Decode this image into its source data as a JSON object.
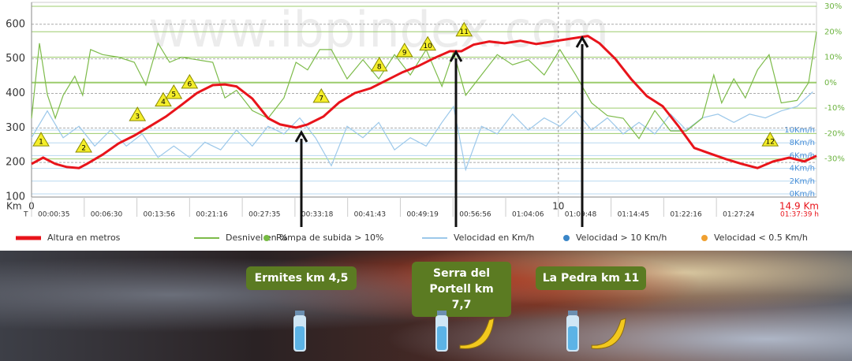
{
  "chart_data": {
    "type": "line",
    "watermark": "www.ibpindex.com",
    "x_label": "Km",
    "time_label": "T",
    "xlim": [
      0,
      14.9
    ],
    "xticks": [
      0,
      10,
      {
        "value": 14.9,
        "label": "14.9 Km"
      }
    ],
    "time_ticks": [
      {
        "value": 0,
        "label": "00:00:35"
      },
      {
        "value": 1,
        "label": "00:06:30"
      },
      {
        "value": 2,
        "label": "00:13:56"
      },
      {
        "value": 3,
        "label": "00:21:16"
      },
      {
        "value": 4,
        "label": "00:27:35"
      },
      {
        "value": 5,
        "label": "00:33:18"
      },
      {
        "value": 6,
        "label": "00:41:43"
      },
      {
        "value": 7,
        "label": "00:49:19"
      },
      {
        "value": 8,
        "label": "00:56:56"
      },
      {
        "value": 9,
        "label": "01:04:06"
      },
      {
        "value": 10,
        "label": "01:09:48"
      },
      {
        "value": 11,
        "label": "01:14:45"
      },
      {
        "value": 12,
        "label": "01:22:16"
      },
      {
        "value": 13,
        "label": "01:27:24"
      },
      {
        "value": 14.9,
        "label": "01:37:39 h"
      }
    ],
    "ylim": [
      100,
      652
    ],
    "yticks": [
      100,
      200,
      300,
      400,
      500,
      600
    ],
    "y2lim": [
      -45,
      30
    ],
    "y2ticks": [
      {
        "value": 30,
        "label": "30%"
      },
      {
        "value": 20,
        "label": "20%"
      },
      {
        "value": 10,
        "label": "10%"
      },
      {
        "value": 0,
        "label": "0%"
      },
      {
        "value": -10,
        "label": "-10%"
      },
      {
        "value": -20,
        "label": "-20%"
      },
      {
        "value": -30,
        "label": "-30%"
      }
    ],
    "y3lim": [
      -0.5,
      29.4
    ],
    "y3ticks": [
      {
        "value": 10,
        "label": "10Km/h"
      },
      {
        "value": 8,
        "label": "8Km/h"
      },
      {
        "value": 6,
        "label": "6Km/h"
      },
      {
        "value": 4,
        "label": "4Km/h"
      },
      {
        "value": 2,
        "label": "2Km/h"
      },
      {
        "value": 0,
        "label": "0Km/h"
      }
    ],
    "grid": true,
    "series": [
      {
        "name": "Altura en metros",
        "color": "#e8141b",
        "axis": "y",
        "x": [
          0,
          0.22,
          0.45,
          0.67,
          0.9,
          1.05,
          1.35,
          1.65,
          1.95,
          2.25,
          2.55,
          2.85,
          3.14,
          3.44,
          3.67,
          3.89,
          4.19,
          4.49,
          4.72,
          5.02,
          5.24,
          5.54,
          5.84,
          6.14,
          6.44,
          6.74,
          7.04,
          7.34,
          7.64,
          7.94,
          8.16,
          8.39,
          8.69,
          8.98,
          9.28,
          9.58,
          9.88,
          10.18,
          10.56,
          10.78,
          11.08,
          11.38,
          11.68,
          11.98,
          12.28,
          12.58,
          12.88,
          13.18,
          13.48,
          13.78,
          14.08,
          14.38,
          14.67,
          14.9
        ],
        "values": [
          196,
          214,
          196,
          187,
          184,
          196,
          223,
          255,
          278,
          305,
          333,
          367,
          401,
          424,
          426,
          420,
          385,
          328,
          310,
          301,
          310,
          333,
          374,
          401,
          415,
          438,
          461,
          479,
          502,
          522,
          522,
          541,
          550,
          545,
          552,
          543,
          550,
          557,
          566,
          545,
          500,
          442,
          392,
          363,
          305,
          242,
          226,
          210,
          196,
          184,
          203,
          214,
          203,
          219
        ]
      },
      {
        "name": "Desnivel en %",
        "color": "#7dbb4a",
        "axis": "y2",
        "x": [
          0,
          0.15,
          0.3,
          0.45,
          0.6,
          0.82,
          0.97,
          1.12,
          1.35,
          1.65,
          1.95,
          2.17,
          2.4,
          2.62,
          2.85,
          3.14,
          3.44,
          3.67,
          3.89,
          4.19,
          4.49,
          4.79,
          5.02,
          5.24,
          5.47,
          5.69,
          5.99,
          6.29,
          6.59,
          6.89,
          7.19,
          7.49,
          7.79,
          8.01,
          8.24,
          8.54,
          8.84,
          9.13,
          9.43,
          9.73,
          10.03,
          10.33,
          10.63,
          10.93,
          11.23,
          11.53,
          11.83,
          12.13,
          12.43,
          12.73,
          12.95,
          13.1,
          13.33,
          13.55,
          13.78,
          14,
          14.23,
          14.53,
          14.75,
          14.9
        ],
        "values": [
          -14,
          15.5,
          -4.7,
          -14,
          -5,
          2.5,
          -5,
          13,
          11,
          10,
          8,
          -1,
          15.5,
          8,
          10,
          9,
          8,
          -6,
          -3,
          -11,
          -14,
          -6,
          8,
          5,
          13,
          13,
          1.5,
          9,
          1.5,
          11,
          3,
          13,
          -1.5,
          12,
          -5,
          3,
          11,
          7,
          9,
          3,
          13,
          3,
          -8,
          -13,
          -14,
          -22,
          -11,
          -19,
          -19,
          -14,
          3,
          -8,
          1.5,
          -6,
          5,
          11,
          -8,
          -7,
          0,
          20
        ]
      },
      {
        "name": "Velocidad en Km/h",
        "color": "#9cc8ea",
        "axis": "y3",
        "x": [
          0,
          0.3,
          0.6,
          0.9,
          1.2,
          1.5,
          1.8,
          2.1,
          2.4,
          2.7,
          3,
          3.29,
          3.59,
          3.89,
          4.19,
          4.49,
          4.79,
          5.09,
          5.39,
          5.69,
          5.99,
          6.29,
          6.59,
          6.89,
          7.19,
          7.49,
          7.79,
          8.01,
          8.24,
          8.54,
          8.84,
          9.13,
          9.43,
          9.73,
          10.03,
          10.33,
          10.63,
          10.93,
          11.23,
          11.53,
          11.83,
          12.13,
          12.43,
          12.73,
          13.03,
          13.33,
          13.63,
          13.93,
          14.23,
          14.53,
          14.83
        ],
        "values": [
          8.8,
          13,
          8.8,
          10.6,
          7.5,
          10,
          7.5,
          9.4,
          5.7,
          7.5,
          5.7,
          8.1,
          6.9,
          10,
          7.5,
          10.6,
          9.4,
          11.9,
          8.8,
          4.4,
          10.6,
          8.8,
          11.2,
          6.9,
          8.8,
          7.5,
          11.2,
          13.7,
          3.8,
          10.6,
          9.4,
          12.5,
          10,
          11.9,
          10.6,
          13,
          10,
          11.9,
          9.4,
          11.2,
          9.4,
          12.5,
          10,
          11.9,
          12.5,
          11.2,
          12.5,
          11.9,
          13,
          13.7,
          16
        ]
      }
    ],
    "legend_markers": [
      {
        "name": "Rampa de subida > 10%",
        "color": "#77bb44"
      },
      {
        "name": "Velocidad > 10 Km/h",
        "color": "#3a86c8"
      },
      {
        "name": "Velocidad < 0.5 Km/h",
        "color": "#f0a030"
      }
    ],
    "markers": [
      {
        "label": "1",
        "x": 0.18,
        "y": 264
      },
      {
        "label": "2",
        "x": 0.99,
        "y": 246
      },
      {
        "label": "3",
        "x": 2.01,
        "y": 337
      },
      {
        "label": "4",
        "x": 2.5,
        "y": 379
      },
      {
        "label": "5",
        "x": 2.7,
        "y": 401
      },
      {
        "label": "6",
        "x": 3,
        "y": 431
      },
      {
        "label": "7",
        "x": 5.5,
        "y": 390
      },
      {
        "label": "8",
        "x": 6.6,
        "y": 481
      },
      {
        "label": "9",
        "x": 7.08,
        "y": 522
      },
      {
        "label": "10",
        "x": 7.52,
        "y": 541
      },
      {
        "label": "11",
        "x": 8.21,
        "y": 582
      },
      {
        "label": "12",
        "x": 14.02,
        "y": 264
      }
    ]
  },
  "annotations": [
    {
      "label": "Ermites km 4,5"
    },
    {
      "label": "Serra del Portell km 7,7"
    },
    {
      "label": "La Pedra km 11"
    }
  ]
}
